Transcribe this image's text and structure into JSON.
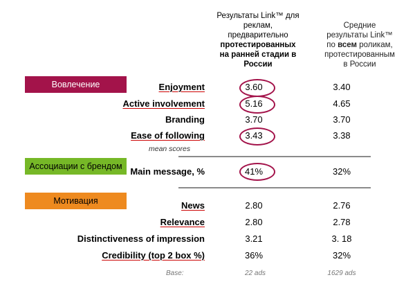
{
  "headers": {
    "col1": {
      "line1": "Результаты Link™ для",
      "line2": "реклам,",
      "line3": "предварительно",
      "line4": "протестированных",
      "line5": "на ранней стадии в",
      "line6": "России"
    },
    "col2": {
      "line1": "Средние",
      "line2": "результаты Link™",
      "line3a": "по ",
      "line3b": "всем",
      "line3c": " роликам,",
      "line4": "протестированным",
      "line5": "в России"
    }
  },
  "sections": {
    "engagement": "Вовлечение",
    "brand_association": "Ассоциации с брендом",
    "motivation": "Мотивация"
  },
  "rows": [
    {
      "label": "Enjoyment",
      "v1": "3.60",
      "v2": "3.40"
    },
    {
      "label": "Active involvement",
      "v1": "5.16",
      "v2": "4.65"
    },
    {
      "label": "Branding",
      "v1": "3.70",
      "v2": "3.70"
    },
    {
      "label": "Ease of following",
      "v1": "3.43",
      "v2": "3.38"
    },
    {
      "label": "Main message, %",
      "v1": "41%",
      "v2": "32%"
    },
    {
      "label": "News",
      "v1": "2.80",
      "v2": "2.76"
    },
    {
      "label": "Relevance",
      "v1": "2.80",
      "v2": "2.78"
    },
    {
      "label": "Distinctiveness of impression",
      "v1": "3.21",
      "v2": "3. 18"
    },
    {
      "label": "Credibility (top 2 box %)",
      "v1": "36%",
      "v2": "32%"
    }
  ],
  "note": "mean scores",
  "base": {
    "label": "Base:",
    "v1": "22 ads",
    "v2": "1629 ads"
  },
  "colors": {
    "engagement": "#a3134a",
    "brand_association": "#76b827",
    "motivation": "#ee8a1f",
    "highlight": "#a3134a"
  }
}
